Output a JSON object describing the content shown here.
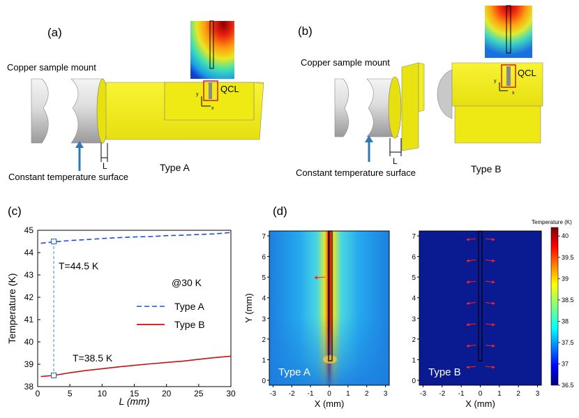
{
  "panel_a": {
    "label": "(a)",
    "mount_label": "Copper sample mount",
    "surface_label": "Constant temperature surface",
    "type_label": "Type A",
    "qcl_label": "QCL",
    "l_label": "L",
    "axis_y": "y",
    "axis_x": "x"
  },
  "panel_b": {
    "label": "(b)",
    "mount_label": "Copper sample mount",
    "surface_label": "Constant temperature surface",
    "type_label": "Type B",
    "qcl_label": "QCL",
    "l_label": "L",
    "axis_y": "y",
    "axis_x": "x"
  },
  "panel_c": {
    "label": "(c)",
    "annotation_a": "T=44.5 K",
    "annotation_b": "T=38.5 K",
    "condition": "@30 K"
  },
  "panel_d": {
    "label": "(d)",
    "colorbar_title": "Temperature (K)",
    "left_label": "Type A",
    "right_label": "Type B"
  },
  "colors": {
    "copper_gray": "#d4d4d4",
    "sample_yellow": "#f5f01e",
    "arrow_blue": "#2f78b4",
    "series_a": "#1f4fe0",
    "series_b": "#c81010",
    "map_background": "#0a1a90"
  },
  "chart_data": [
    {
      "type": "line",
      "title": "",
      "xlabel": "L (mm)",
      "ylabel": "Temperature (K)",
      "xlim": [
        0,
        30
      ],
      "ylim": [
        38,
        45
      ],
      "xticks": [
        "0",
        "5",
        "10",
        "15",
        "20",
        "25",
        "30"
      ],
      "yticks": [
        "38",
        "39",
        "40",
        "41",
        "42",
        "43",
        "44",
        "45"
      ],
      "x": [
        0.5,
        2.5,
        5,
        7.5,
        10,
        12.5,
        15,
        17.5,
        20,
        22.5,
        25,
        27.5,
        30
      ],
      "series": [
        {
          "name": "Type A",
          "style": "dashed",
          "values": [
            44.42,
            44.48,
            44.54,
            44.58,
            44.63,
            44.67,
            44.7,
            44.72,
            44.76,
            44.78,
            44.81,
            44.84,
            44.9
          ]
        },
        {
          "name": "Type B",
          "style": "solid",
          "values": [
            38.45,
            38.5,
            38.62,
            38.72,
            38.8,
            38.88,
            38.95,
            39.02,
            39.08,
            39.14,
            39.22,
            39.3,
            39.36
          ]
        }
      ],
      "markers": [
        {
          "x": 2.5,
          "y": 44.5
        },
        {
          "x": 2.5,
          "y": 38.5
        }
      ],
      "legend": "center-right"
    },
    {
      "type": "heatmap",
      "title": "Type A",
      "xlabel": "X (mm)",
      "ylabel": "Y (mm)",
      "xlim": [
        -3.2,
        3.2
      ],
      "ylim": [
        0,
        7
      ],
      "xticks": [
        "-3",
        "-2",
        "-1",
        "0",
        "1",
        "2",
        "3"
      ],
      "yticks": [
        "0",
        "1",
        "2",
        "3",
        "4",
        "5",
        "6",
        "7"
      ],
      "peak_temperature": 40.2,
      "base_temperature": 36.5
    },
    {
      "type": "heatmap",
      "title": "Type B",
      "xlabel": "X (mm)",
      "ylabel": "",
      "xlim": [
        -3.2,
        3.2
      ],
      "ylim": [
        0,
        7
      ],
      "xticks": [
        "-3",
        "-2",
        "-1",
        "0",
        "1",
        "2",
        "3"
      ],
      "yticks": [
        "0",
        "1",
        "2",
        "3",
        "4",
        "5",
        "6",
        "7"
      ],
      "colorbar": {
        "label": "Temperature (K)",
        "min": 36.5,
        "max": 40.2,
        "ticks": [
          "36.5",
          "37",
          "37.5",
          "38",
          "38.5",
          "39",
          "39.5",
          "40"
        ]
      }
    }
  ]
}
